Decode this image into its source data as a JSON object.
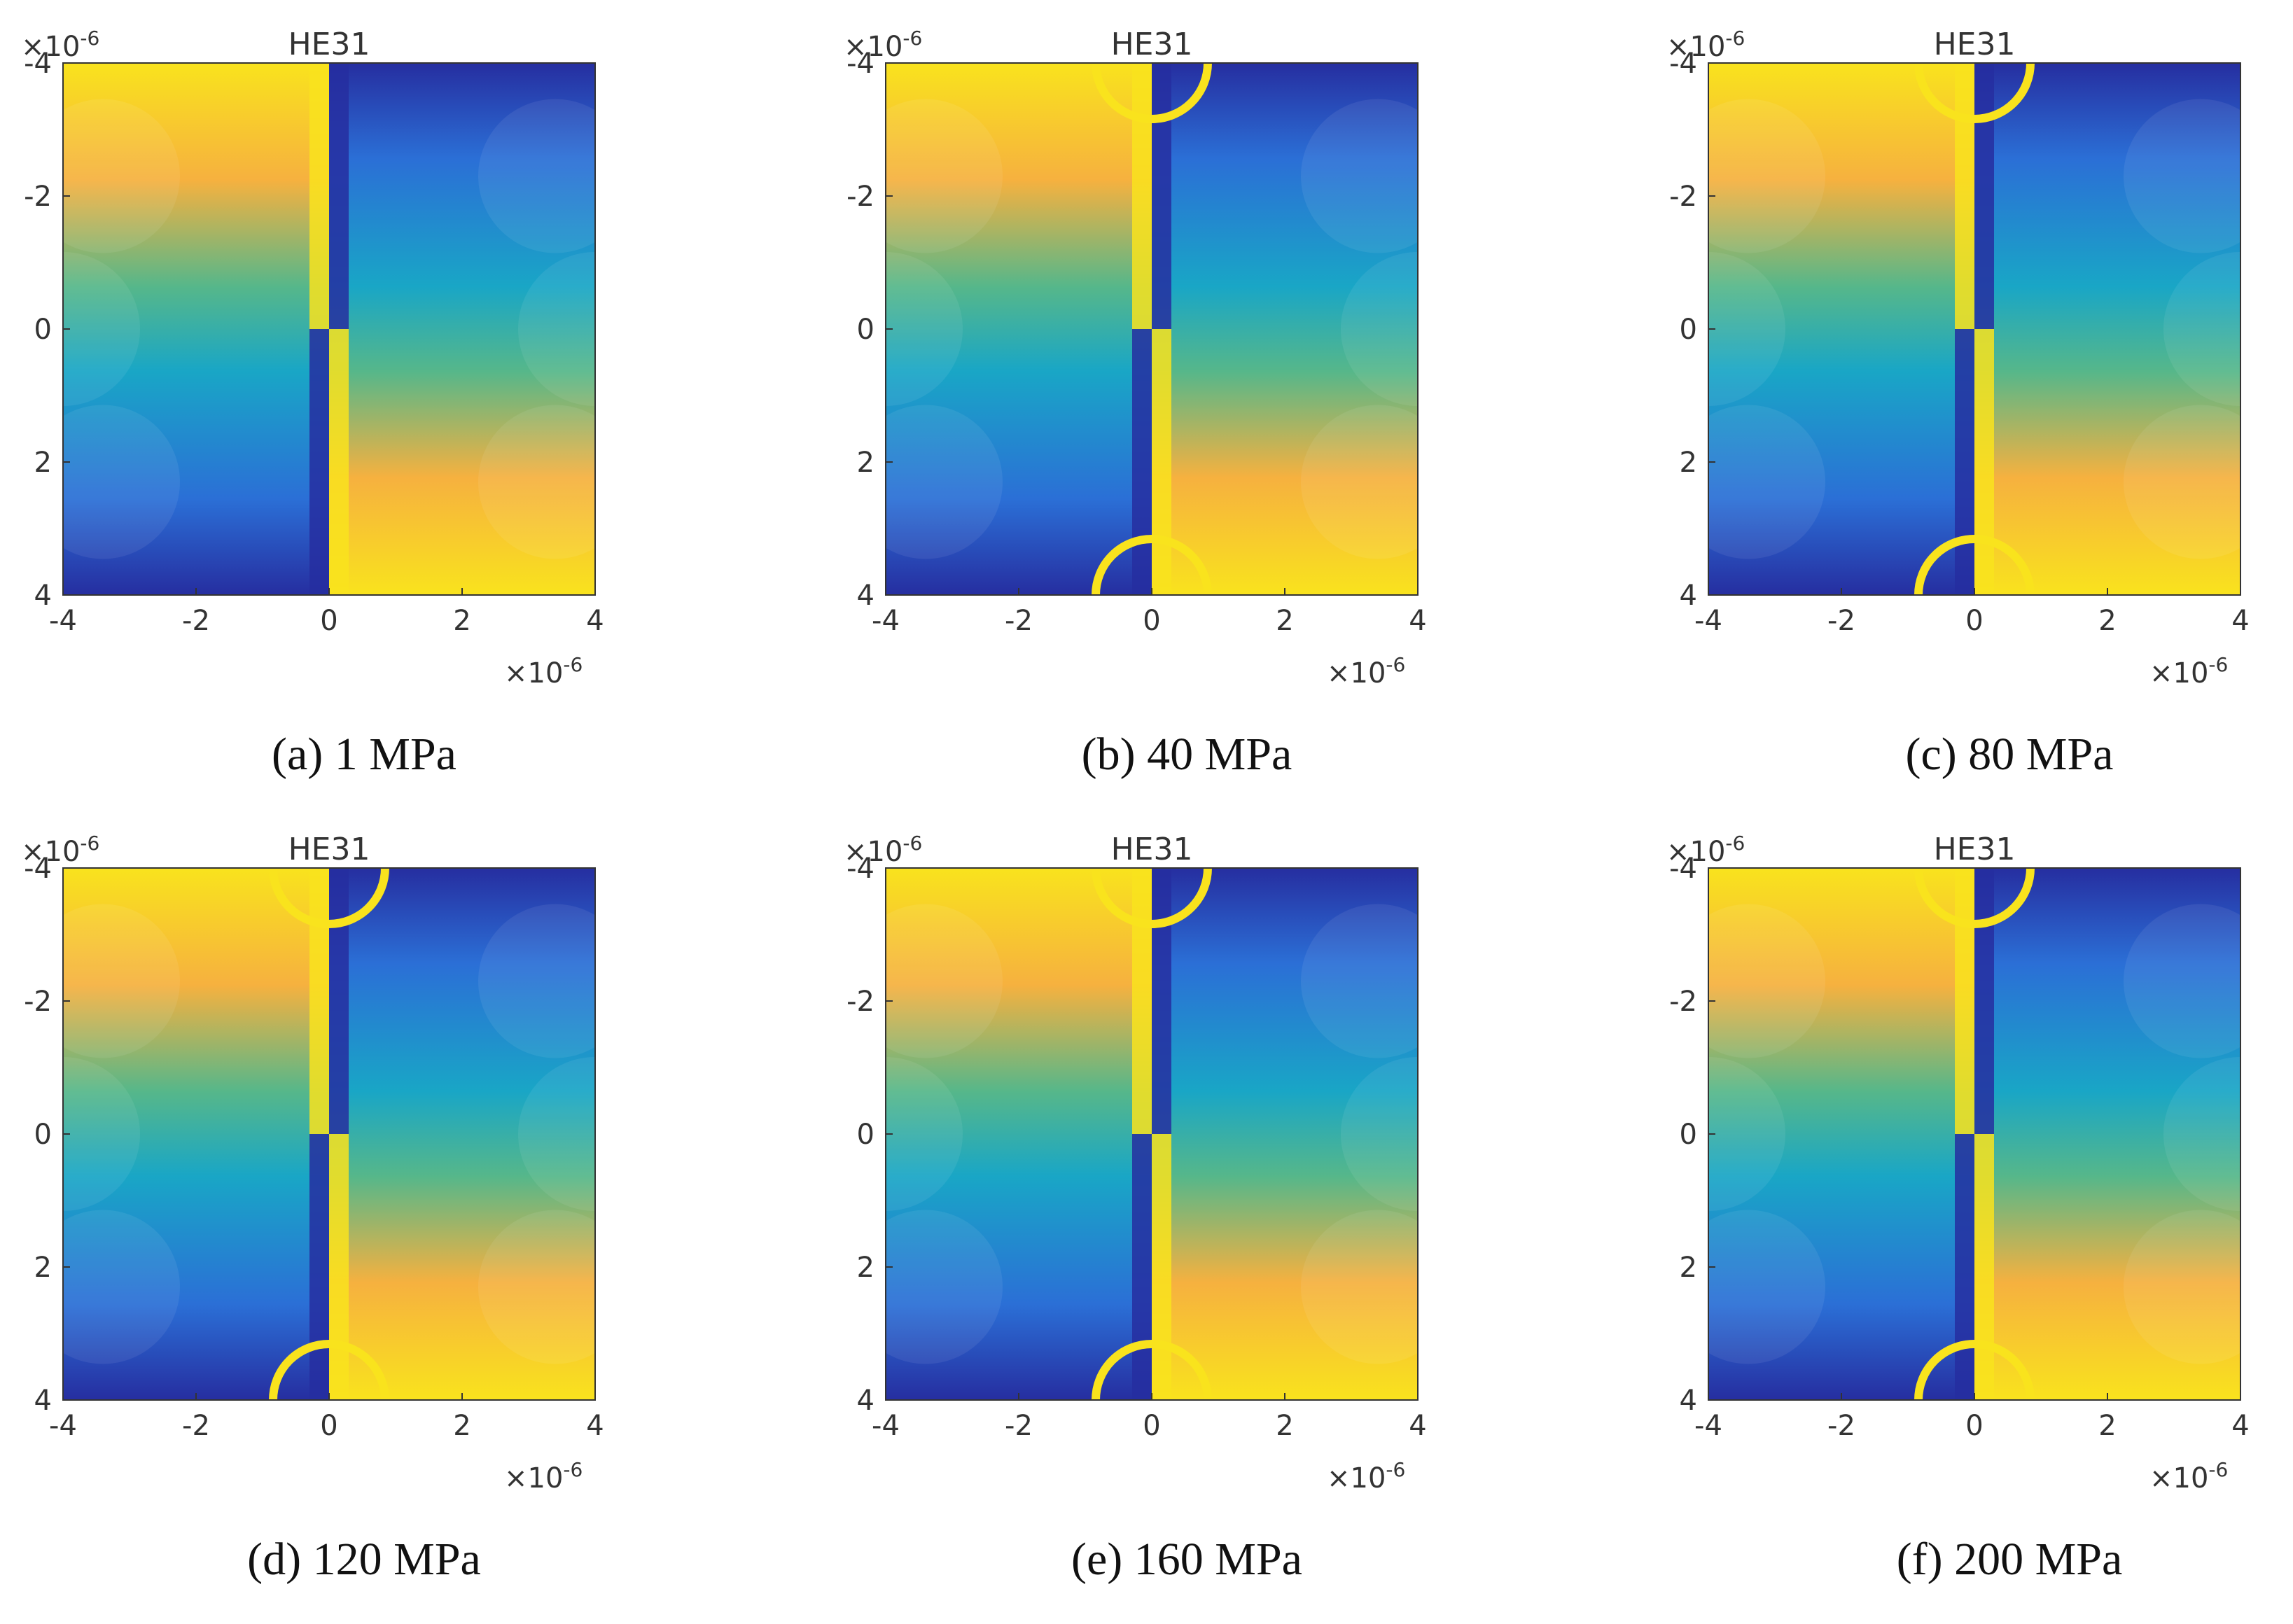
{
  "figure": {
    "colors": {
      "yellow": "#f9e31d",
      "orange": "#f6b13f",
      "green": "#56b78a",
      "cyan": "#19a6c6",
      "blue": "#2b6fd6",
      "navy": "#262ea0",
      "axis": "#333333"
    }
  },
  "chart_data": [
    {
      "id": "a",
      "type": "heatmap",
      "title": "HE31",
      "caption": "(a) 1 MPa",
      "xlim": [
        -4,
        4
      ],
      "ylim": [
        -4,
        4
      ],
      "y_inverted": true,
      "x_ticks": [
        "-4",
        "-2",
        "0",
        "2",
        "4"
      ],
      "y_ticks": [
        "-4",
        "-2",
        "0",
        "2",
        "4"
      ],
      "x_multiplier": "×10",
      "y_multiplier": "×10",
      "multiplier_exp": "-6",
      "x_multiplier_label": "×10-6",
      "y_multiplier_label": "×10-6"
    },
    {
      "id": "b",
      "type": "heatmap",
      "title": "HE31",
      "caption": "(b) 40 MPa",
      "xlim": [
        -4,
        4
      ],
      "ylim": [
        -4,
        4
      ],
      "y_inverted": true,
      "x_ticks": [
        "-4",
        "-2",
        "0",
        "2",
        "4"
      ],
      "y_ticks": [
        "-4",
        "-2",
        "0",
        "2",
        "4"
      ],
      "x_multiplier": "×10",
      "y_multiplier": "×10",
      "multiplier_exp": "-6",
      "x_multiplier_label": "×10-6",
      "y_multiplier_label": "×10-6"
    },
    {
      "id": "c",
      "type": "heatmap",
      "title": "HE31",
      "caption": "(c) 80 MPa",
      "xlim": [
        -4,
        4
      ],
      "ylim": [
        -4,
        4
      ],
      "y_inverted": true,
      "x_ticks": [
        "-4",
        "-2",
        "0",
        "2",
        "4"
      ],
      "y_ticks": [
        "-4",
        "-2",
        "0",
        "2",
        "4"
      ],
      "x_multiplier": "×10",
      "y_multiplier": "×10",
      "multiplier_exp": "-6",
      "x_multiplier_label": "×10-6",
      "y_multiplier_label": "×10-6"
    },
    {
      "id": "d",
      "type": "heatmap",
      "title": "HE31",
      "caption": "(d) 120 MPa",
      "xlim": [
        -4,
        4
      ],
      "ylim": [
        -4,
        4
      ],
      "y_inverted": true,
      "x_ticks": [
        "-4",
        "-2",
        "0",
        "2",
        "4"
      ],
      "y_ticks": [
        "-4",
        "-2",
        "0",
        "2",
        "4"
      ],
      "x_multiplier": "×10",
      "y_multiplier": "×10",
      "multiplier_exp": "-6",
      "x_multiplier_label": "×10-6",
      "y_multiplier_label": "×10-6"
    },
    {
      "id": "e",
      "type": "heatmap",
      "title": "HE31",
      "caption": "(e) 160 MPa",
      "xlim": [
        -4,
        4
      ],
      "ylim": [
        -4,
        4
      ],
      "y_inverted": true,
      "x_ticks": [
        "-4",
        "-2",
        "0",
        "2",
        "4"
      ],
      "y_ticks": [
        "-4",
        "-2",
        "0",
        "2",
        "4"
      ],
      "x_multiplier": "×10",
      "y_multiplier": "×10",
      "multiplier_exp": "-6",
      "x_multiplier_label": "×10-6",
      "y_multiplier_label": "×10-6"
    },
    {
      "id": "f",
      "type": "heatmap",
      "title": "HE31",
      "caption": "(f) 200 MPa",
      "xlim": [
        -4,
        4
      ],
      "ylim": [
        -4,
        4
      ],
      "y_inverted": true,
      "x_ticks": [
        "-4",
        "-2",
        "0",
        "2",
        "4"
      ],
      "y_ticks": [
        "-4",
        "-2",
        "0",
        "2",
        "4"
      ],
      "x_multiplier": "×10",
      "y_multiplier": "×10",
      "multiplier_exp": "-6",
      "x_multiplier_label": "×10-6",
      "y_multiplier_label": "×10-6"
    }
  ]
}
